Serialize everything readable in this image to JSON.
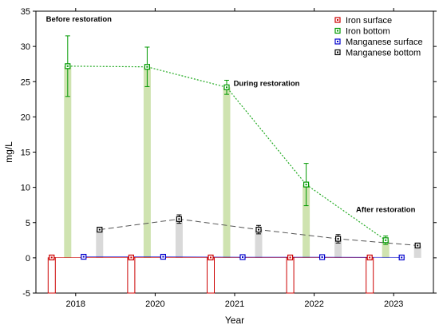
{
  "chart_data": {
    "type": "bar",
    "categories": [
      "2018",
      "2020",
      "2021",
      "2022",
      "2023"
    ],
    "xlabel": "Year",
    "ylabel": "mg/L",
    "ylim": [
      -5,
      35
    ],
    "yticks": [
      -5,
      0,
      5,
      10,
      15,
      20,
      25,
      30,
      35
    ],
    "grid": false,
    "legend_position": "top-right",
    "series": [
      {
        "name": "Iron surface",
        "values": [
          0.05,
          0.05,
          0.05,
          0.05,
          0.05
        ],
        "errors": [
          0.05,
          0.05,
          0.05,
          0.05,
          0.05
        ],
        "color": "#cc0000",
        "fill": "#ffffff"
      },
      {
        "name": "Iron bottom",
        "values": [
          27.2,
          27.1,
          24.2,
          10.4,
          2.5
        ],
        "errors": [
          4.3,
          2.8,
          1.0,
          3.0,
          0.6
        ],
        "color": "#009900",
        "fill": "#cfe3b0"
      },
      {
        "name": "Manganese surface",
        "values": [
          0.15,
          0.15,
          0.1,
          0.1,
          0.05
        ],
        "errors": [
          0.05,
          0.05,
          0.05,
          0.05,
          0.05
        ],
        "color": "#0000cc",
        "fill": "#b0c8e0"
      },
      {
        "name": "Manganese bottom",
        "values": [
          4.0,
          5.5,
          4.0,
          2.7,
          1.75
        ],
        "errors": [
          0.3,
          0.6,
          0.6,
          0.6,
          0.3
        ],
        "color": "#000000",
        "fill": "#d9d9d9"
      }
    ],
    "annotations": [
      {
        "text": "Before restoration",
        "x": "2018",
        "y": 33.5
      },
      {
        "text": "During restoration",
        "x": "2021",
        "y": 24.4
      },
      {
        "text": "After restoration",
        "x": "2023",
        "y": 6.5
      }
    ]
  }
}
